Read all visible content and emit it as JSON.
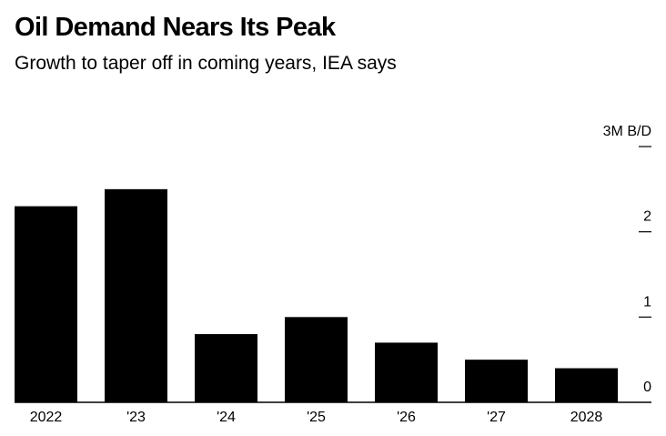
{
  "header": {
    "title": "Oil Demand Nears Its Peak",
    "subtitle": "Growth to taper off in coming years, IEA says"
  },
  "colors": {
    "bar": "#000000",
    "background": "#ffffff",
    "text": "#000000"
  },
  "chart_data": {
    "type": "bar",
    "title": "Oil Demand Nears Its Peak",
    "subtitle": "Growth to taper off in coming years, IEA says",
    "categories": [
      "2022",
      "'23",
      "'24",
      "'25",
      "'26",
      "'27",
      "2028"
    ],
    "values": [
      2.3,
      2.5,
      0.8,
      1.0,
      0.7,
      0.5,
      0.4
    ],
    "ylim": [
      0,
      3
    ],
    "y_ticks": [
      0,
      1,
      2,
      3
    ],
    "y_tick_labels": [
      "0",
      "1",
      "2",
      "3M B/D"
    ],
    "xlabel": "",
    "ylabel": "",
    "y_axis_position": "right",
    "grid": false,
    "legend": "none"
  }
}
